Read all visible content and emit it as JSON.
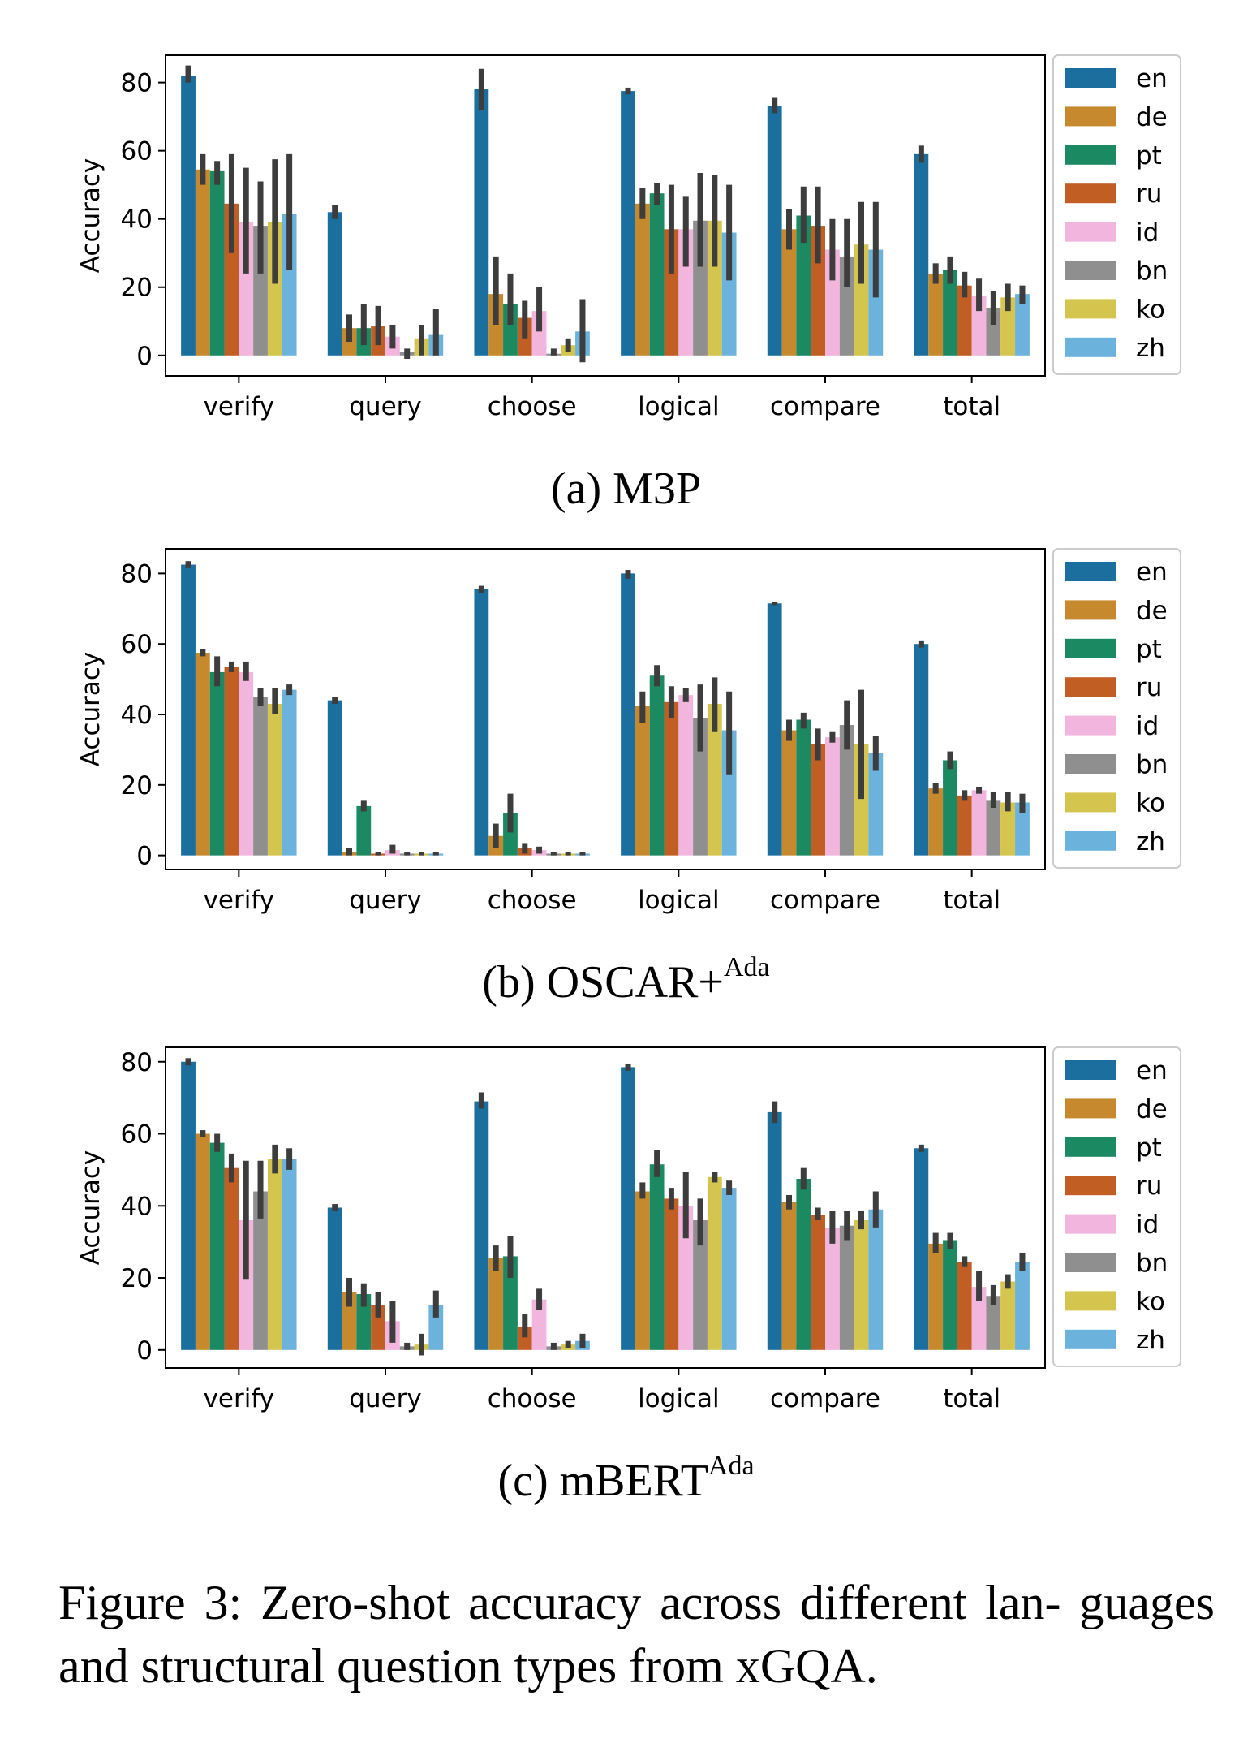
{
  "caption": {
    "label": "Figure 3:",
    "text": "Zero-shot accuracy across different lan- guages and structural question types from xGQA."
  },
  "panels": [
    {
      "prefix": "(a) M3P",
      "superscript": ""
    },
    {
      "prefix": "(b) OSCAR+",
      "superscript": "Ada"
    },
    {
      "prefix": "(c) mBERT",
      "superscript": "Ada"
    }
  ],
  "chart_data": [
    {
      "type": "bar",
      "title": "(a) M3P",
      "xlabel": "",
      "ylabel": "Accuracy",
      "ylim": [
        -6,
        88
      ],
      "yticks": [
        0,
        20,
        40,
        60,
        80
      ],
      "legend_position": "outside-right",
      "categories": [
        "verify",
        "query",
        "choose",
        "logical",
        "compare",
        "total"
      ],
      "series": [
        {
          "name": "en",
          "color": "#1a6f9f",
          "values": [
            82,
            42,
            78,
            77.5,
            73,
            59
          ],
          "errors": [
            [
              80,
              85
            ],
            [
              40,
              44
            ],
            [
              72,
              84
            ],
            [
              76.5,
              78.5
            ],
            [
              71,
              75.5
            ],
            [
              56.5,
              61.5
            ]
          ]
        },
        {
          "name": "de",
          "color": "#c6892d",
          "values": [
            54.5,
            8,
            18,
            44.5,
            37,
            24
          ],
          "errors": [
            [
              50,
              59
            ],
            [
              4,
              12
            ],
            [
              9,
              29
            ],
            [
              40,
              49
            ],
            [
              31,
              43
            ],
            [
              21,
              27
            ]
          ]
        },
        {
          "name": "pt",
          "color": "#1b8a63",
          "values": [
            54,
            8,
            15,
            47.5,
            41,
            25
          ],
          "errors": [
            [
              50,
              57
            ],
            [
              3,
              15
            ],
            [
              9,
              24
            ],
            [
              44,
              50.5
            ],
            [
              33,
              49.5
            ],
            [
              21,
              29
            ]
          ]
        },
        {
          "name": "ru",
          "color": "#c05e24",
          "values": [
            44.5,
            8.5,
            11,
            37,
            38,
            20.5
          ],
          "errors": [
            [
              30,
              59
            ],
            [
              3,
              14.5
            ],
            [
              5,
              16
            ],
            [
              24,
              50
            ],
            [
              27,
              49.5
            ],
            [
              17,
              24.5
            ]
          ]
        },
        {
          "name": "id",
          "color": "#f2b5dd",
          "values": [
            39,
            5.5,
            13,
            37,
            31,
            17.5
          ],
          "errors": [
            [
              24,
              55
            ],
            [
              2,
              9
            ],
            [
              7,
              20
            ],
            [
              26,
              46.5
            ],
            [
              22,
              40
            ],
            [
              13,
              22.5
            ]
          ]
        },
        {
          "name": "bn",
          "color": "#8f8f8f",
          "values": [
            38,
            1,
            0.5,
            39.5,
            29,
            14
          ],
          "errors": [
            [
              24,
              51
            ],
            [
              -1,
              2
            ],
            [
              0,
              2
            ],
            [
              26,
              53.5
            ],
            [
              20,
              40
            ],
            [
              9,
              19
            ]
          ]
        },
        {
          "name": "ko",
          "color": "#d4c54e",
          "values": [
            39,
            5,
            3,
            39.5,
            32.5,
            17
          ],
          "errors": [
            [
              21,
              57.5
            ],
            [
              0,
              9
            ],
            [
              1,
              5
            ],
            [
              26,
              53
            ],
            [
              21,
              45
            ],
            [
              13,
              21
            ]
          ]
        },
        {
          "name": "zh",
          "color": "#6bb2dd",
          "values": [
            41.5,
            6,
            7,
            36,
            31,
            18
          ],
          "errors": [
            [
              25,
              59
            ],
            [
              0,
              13.5
            ],
            [
              -2,
              16.5
            ],
            [
              22,
              50
            ],
            [
              17,
              45
            ],
            [
              15,
              20.5
            ]
          ]
        }
      ]
    },
    {
      "type": "bar",
      "title": "(b) OSCAR+Ada",
      "xlabel": "",
      "ylabel": "Accuracy",
      "ylim": [
        -4,
        87
      ],
      "yticks": [
        0,
        20,
        40,
        60,
        80
      ],
      "legend_position": "outside-right",
      "categories": [
        "verify",
        "query",
        "choose",
        "logical",
        "compare",
        "total"
      ],
      "series": [
        {
          "name": "en",
          "color": "#1a6f9f",
          "values": [
            82.5,
            44,
            75.5,
            80,
            71.5,
            60
          ],
          "errors": [
            [
              81.5,
              83.5
            ],
            [
              43,
              45
            ],
            [
              74.5,
              76.5
            ],
            [
              78.5,
              81
            ],
            [
              71,
              72
            ],
            [
              59,
              61
            ]
          ]
        },
        {
          "name": "de",
          "color": "#c6892d",
          "values": [
            57.5,
            1,
            5.5,
            42.5,
            35.5,
            19
          ],
          "errors": [
            [
              56.5,
              58.5
            ],
            [
              0,
              2
            ],
            [
              2,
              9
            ],
            [
              37.5,
              46.5
            ],
            [
              32.5,
              38.5
            ],
            [
              17.5,
              20.5
            ]
          ]
        },
        {
          "name": "pt",
          "color": "#1b8a63",
          "values": [
            52,
            14,
            12,
            51,
            38.5,
            27
          ],
          "errors": [
            [
              48,
              56.5
            ],
            [
              12.5,
              15.5
            ],
            [
              6.5,
              17.5
            ],
            [
              48,
              54
            ],
            [
              36,
              40.5
            ],
            [
              24.5,
              29.5
            ]
          ]
        },
        {
          "name": "ru",
          "color": "#c05e24",
          "values": [
            53.5,
            0.5,
            2,
            43.5,
            31.5,
            17
          ],
          "errors": [
            [
              52,
              55
            ],
            [
              0,
              1
            ],
            [
              0.5,
              3.5
            ],
            [
              39,
              48
            ],
            [
              27,
              36
            ],
            [
              15.5,
              18.5
            ]
          ]
        },
        {
          "name": "id",
          "color": "#f2b5dd",
          "values": [
            52,
            1.5,
            1.5,
            45.5,
            33.5,
            18.5
          ],
          "errors": [
            [
              49.5,
              55
            ],
            [
              0.5,
              3
            ],
            [
              0.5,
              2.5
            ],
            [
              43.5,
              47.5
            ],
            [
              32,
              35
            ],
            [
              17.5,
              19.5
            ]
          ]
        },
        {
          "name": "bn",
          "color": "#8f8f8f",
          "values": [
            45,
            0.5,
            0.5,
            39,
            37,
            15.5
          ],
          "errors": [
            [
              42.5,
              47.5
            ],
            [
              0,
              1
            ],
            [
              0,
              1
            ],
            [
              29.5,
              48.5
            ],
            [
              30,
              44
            ],
            [
              13.5,
              18
            ]
          ]
        },
        {
          "name": "ko",
          "color": "#d4c54e",
          "values": [
            43,
            0.5,
            0.5,
            43,
            31.5,
            15
          ],
          "errors": [
            [
              40,
              47.5
            ],
            [
              0,
              1
            ],
            [
              0,
              1
            ],
            [
              35,
              50.5
            ],
            [
              16,
              47
            ],
            [
              12.5,
              18
            ]
          ]
        },
        {
          "name": "zh",
          "color": "#6bb2dd",
          "values": [
            47,
            0.5,
            0.5,
            35.5,
            29,
            15
          ],
          "errors": [
            [
              45.5,
              48.5
            ],
            [
              0,
              1
            ],
            [
              0,
              1
            ],
            [
              23,
              46.5
            ],
            [
              24,
              34
            ],
            [
              12,
              17.5
            ]
          ]
        }
      ]
    },
    {
      "type": "bar",
      "title": "(c) mBERTAda",
      "xlabel": "",
      "ylabel": "Accuracy",
      "ylim": [
        -5,
        84
      ],
      "yticks": [
        0,
        20,
        40,
        60,
        80
      ],
      "legend_position": "outside-right",
      "categories": [
        "verify",
        "query",
        "choose",
        "logical",
        "compare",
        "total"
      ],
      "series": [
        {
          "name": "en",
          "color": "#1a6f9f",
          "values": [
            80,
            39.5,
            69,
            78.5,
            66,
            56
          ],
          "errors": [
            [
              79,
              81
            ],
            [
              38.5,
              40.5
            ],
            [
              67,
              71.5
            ],
            [
              77.5,
              79.5
            ],
            [
              63,
              69
            ],
            [
              55,
              57
            ]
          ]
        },
        {
          "name": "de",
          "color": "#c6892d",
          "values": [
            60,
            16,
            25.5,
            44,
            41,
            29.5
          ],
          "errors": [
            [
              59,
              61
            ],
            [
              12,
              20
            ],
            [
              22,
              29
            ],
            [
              42,
              46.5
            ],
            [
              39,
              43
            ],
            [
              27,
              32.5
            ]
          ]
        },
        {
          "name": "pt",
          "color": "#1b8a63",
          "values": [
            57.5,
            15.5,
            26,
            51.5,
            47.5,
            30.5
          ],
          "errors": [
            [
              55,
              60
            ],
            [
              12,
              18.5
            ],
            [
              20,
              31.5
            ],
            [
              48,
              55.5
            ],
            [
              44.5,
              50.5
            ],
            [
              28,
              32.5
            ]
          ]
        },
        {
          "name": "ru",
          "color": "#c05e24",
          "values": [
            50.5,
            12.5,
            6.5,
            42,
            37.5,
            24.5
          ],
          "errors": [
            [
              46.5,
              54.5
            ],
            [
              9,
              16
            ],
            [
              3.5,
              10
            ],
            [
              39,
              45
            ],
            [
              36,
              39.5
            ],
            [
              23,
              26
            ]
          ]
        },
        {
          "name": "id",
          "color": "#f2b5dd",
          "values": [
            36,
            8,
            14,
            40,
            34,
            17.5
          ],
          "errors": [
            [
              19.5,
              52.5
            ],
            [
              2,
              13.5
            ],
            [
              11,
              17
            ],
            [
              31,
              49.5
            ],
            [
              29.5,
              38.5
            ],
            [
              13.5,
              22
            ]
          ]
        },
        {
          "name": "bn",
          "color": "#8f8f8f",
          "values": [
            44,
            1,
            1,
            36,
            34.5,
            15
          ],
          "errors": [
            [
              36.5,
              52.5
            ],
            [
              0,
              2
            ],
            [
              0,
              2
            ],
            [
              29,
              42
            ],
            [
              30.5,
              38.5
            ],
            [
              12.5,
              18
            ]
          ]
        },
        {
          "name": "ko",
          "color": "#d4c54e",
          "values": [
            53,
            1.5,
            1.5,
            48,
            36,
            19
          ],
          "errors": [
            [
              49,
              57
            ],
            [
              -1.5,
              4.5
            ],
            [
              0.5,
              2.5
            ],
            [
              46.5,
              49.5
            ],
            [
              33.5,
              38.5
            ],
            [
              17,
              21
            ]
          ]
        },
        {
          "name": "zh",
          "color": "#6bb2dd",
          "values": [
            53,
            12.5,
            2.5,
            45,
            39,
            24.5
          ],
          "errors": [
            [
              50,
              56
            ],
            [
              9,
              16.5
            ],
            [
              0.5,
              4.5
            ],
            [
              43,
              47
            ],
            [
              34,
              44
            ],
            [
              22,
              27
            ]
          ]
        }
      ]
    }
  ]
}
